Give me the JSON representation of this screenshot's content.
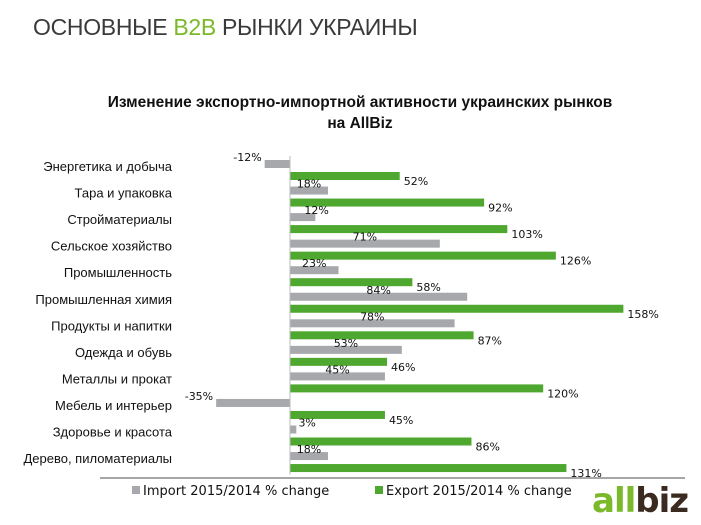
{
  "header": {
    "pre": "ОСНОВНЫЕ ",
    "accent": "B2B",
    "post": " РЫНКИ УКРАИНЫ"
  },
  "logo": {
    "text": "allbiz"
  },
  "chart_data": {
    "type": "bar",
    "orientation": "horizontal",
    "title": "Изменение экспортно-импортной активности украинских рынков на AllBiz",
    "title_lines": [
      "Изменение экспортно-импортной активности украинских рынков",
      "на AllBiz"
    ],
    "categories": [
      "Энергетика и добыча",
      "Тара и упаковка",
      "Стройматериалы",
      "Сельское хозяйство",
      "Промышленность",
      "Промышленная химия",
      "Продукты и напитки",
      "Одежда и обувь",
      "Металлы и прокат",
      "Мебель и интерьер",
      "Здоровье и красота",
      "Дерево, пиломатериалы"
    ],
    "series": [
      {
        "name": "Import 2015/2014 % change",
        "color": "#a6a8ab",
        "values": [
          -12,
          18,
          12,
          71,
          23,
          84,
          78,
          53,
          45,
          -35,
          3,
          18
        ]
      },
      {
        "name": "Export 2015/2014 % change",
        "color": "#4ea72e",
        "values": [
          52,
          92,
          103,
          126,
          58,
          158,
          87,
          46,
          120,
          45,
          86,
          131
        ]
      }
    ],
    "value_suffix": "%",
    "legend": "bottom",
    "grid": false
  }
}
